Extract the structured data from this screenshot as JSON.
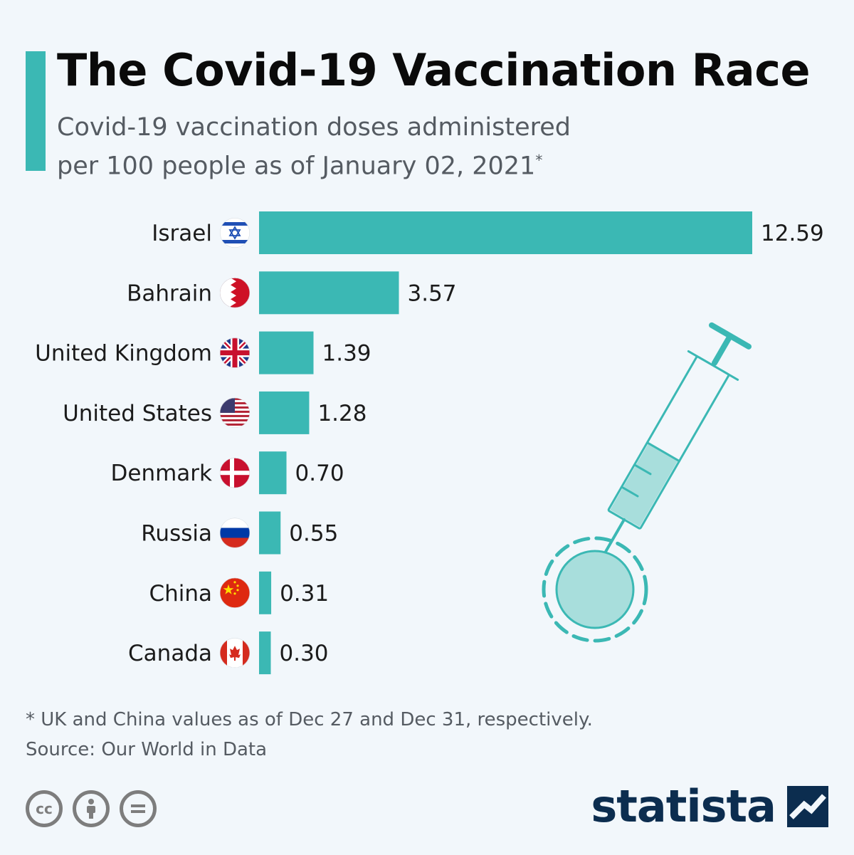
{
  "header": {
    "title": "The Covid-19 Vaccination Race",
    "subtitle_line1": "Covid-19 vaccination doses administered",
    "subtitle_line2": "per 100 people as of January 02, 2021",
    "subtitle_marker": "*",
    "accent_color": "#3bb8b4"
  },
  "chart_data": {
    "type": "bar",
    "orientation": "horizontal",
    "title": "The Covid-19 Vaccination Race",
    "subtitle": "Covid-19 vaccination doses administered per 100 people as of January 02, 2021*",
    "categories": [
      "Israel",
      "Bahrain",
      "United Kingdom",
      "United States",
      "Denmark",
      "Russia",
      "China",
      "Canada"
    ],
    "values": [
      12.59,
      3.57,
      1.39,
      1.28,
      0.7,
      0.55,
      0.31,
      0.3
    ],
    "value_labels": [
      "12.59",
      "3.57",
      "1.39",
      "1.28",
      "0.70",
      "0.55",
      "0.31",
      "0.30"
    ],
    "flag_icons": [
      "israel-flag-icon",
      "bahrain-flag-icon",
      "uk-flag-icon",
      "us-flag-icon",
      "denmark-flag-icon",
      "russia-flag-icon",
      "china-flag-icon",
      "canada-flag-icon"
    ],
    "bar_color": "#3bb8b4",
    "xlim": [
      0,
      12.59
    ],
    "grid": false,
    "legend": "none"
  },
  "illustration": {
    "icon": "syringe-virus-icon"
  },
  "footer": {
    "footnote": "* UK and China values as of Dec 27 and Dec 31, respectively.",
    "source": "Source: Our World in Data",
    "license_icons": [
      "creative-commons-icon",
      "attribution-icon",
      "no-derivatives-icon"
    ],
    "brand": "statista",
    "brand_color": "#0c2d4f"
  }
}
